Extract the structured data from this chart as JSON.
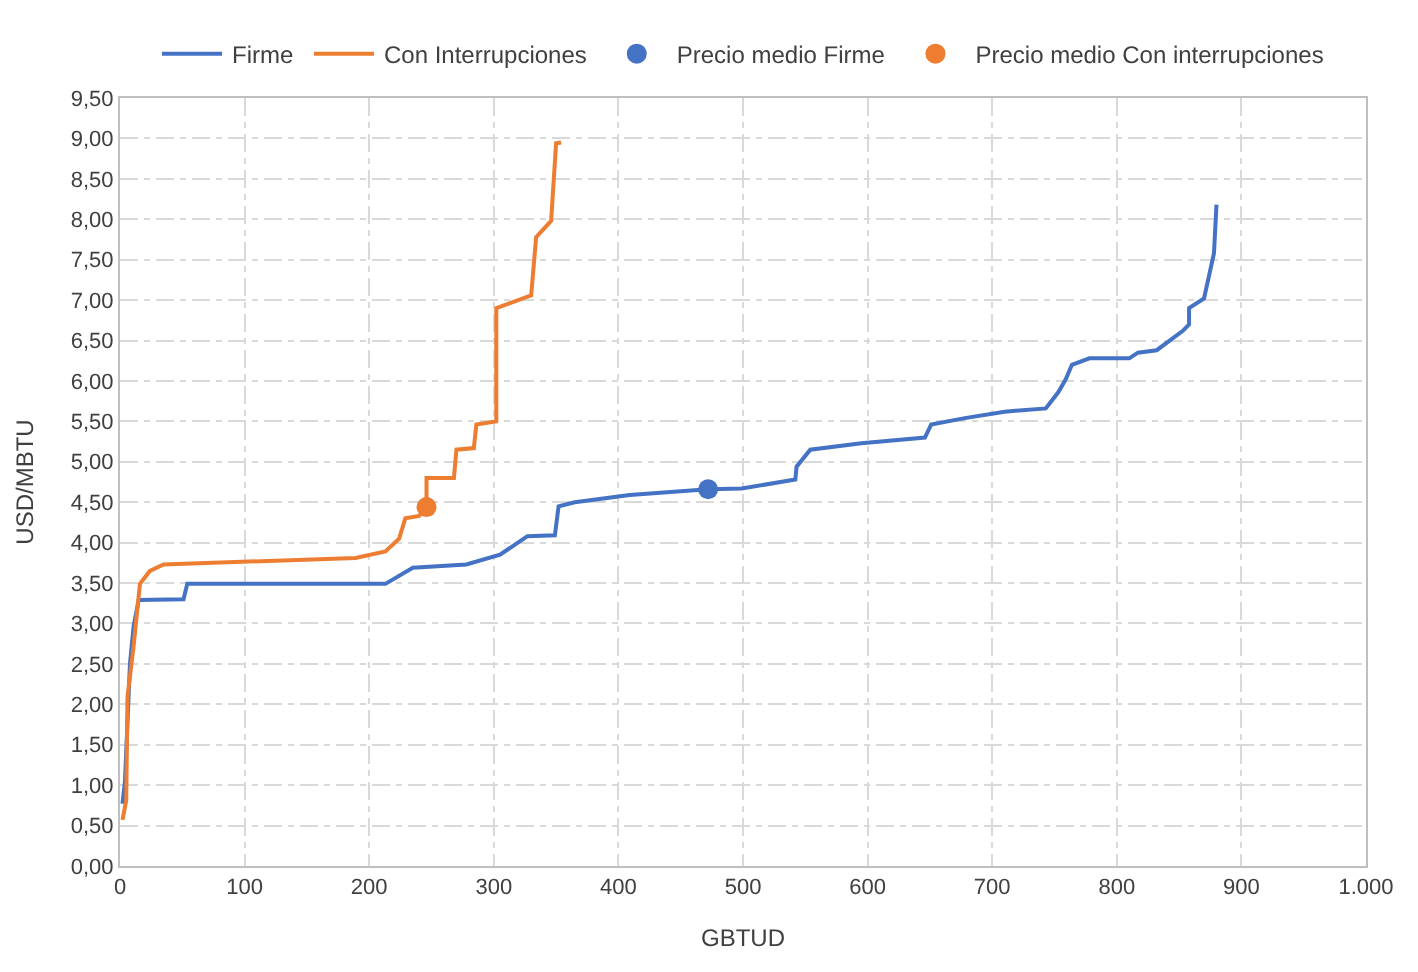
{
  "chart_data": {
    "type": "line",
    "xlabel": "GBTUD",
    "ylabel": "USD/MBTU",
    "series": [
      {
        "name": "Firme",
        "color": "#4472c4",
        "x": [
          2,
          4,
          8,
          11,
          15,
          51,
          54,
          207,
          213,
          235,
          278,
          305,
          327,
          349,
          352,
          365,
          409,
          472,
          499,
          542,
          543,
          554,
          595,
          646,
          651,
          678,
          710,
          743,
          753,
          759,
          764,
          778,
          810,
          817,
          832,
          853,
          858,
          858,
          870,
          878,
          880
        ],
        "values": [
          0.77,
          1.05,
          2.5,
          2.97,
          3.29,
          3.3,
          3.49,
          3.49,
          3.49,
          3.69,
          3.73,
          3.85,
          4.08,
          4.09,
          4.45,
          4.5,
          4.59,
          4.66,
          4.67,
          4.78,
          4.94,
          5.15,
          5.23,
          5.3,
          5.46,
          5.54,
          5.62,
          5.66,
          5.86,
          6.02,
          6.2,
          6.28,
          6.28,
          6.35,
          6.38,
          6.62,
          6.7,
          6.9,
          7.02,
          7.58,
          8.18
        ]
      },
      {
        "name": "Con Interrupciones",
        "color": "#ed7d31",
        "x": [
          2,
          5,
          6,
          11,
          16,
          24,
          35,
          189,
          213,
          224,
          229,
          240,
          246,
          246,
          268,
          270,
          284,
          286,
          302,
          302,
          330,
          334,
          346,
          350,
          354
        ],
        "values": [
          0.57,
          0.81,
          2.09,
          2.73,
          3.49,
          3.65,
          3.73,
          3.81,
          3.89,
          4.05,
          4.3,
          4.33,
          4.44,
          4.8,
          4.8,
          5.15,
          5.17,
          5.46,
          5.5,
          6.9,
          7.06,
          7.78,
          7.98,
          8.94,
          8.95
        ]
      },
      {
        "name": "Precio medio Firme",
        "type": "scatter",
        "color": "#4472c4",
        "x": [
          472
        ],
        "values": [
          4.66
        ]
      },
      {
        "name": "Precio medio Con interrupciones",
        "type": "scatter",
        "color": "#ed7d31",
        "x": [
          246
        ],
        "values": [
          4.44
        ]
      }
    ],
    "xlim": [
      0,
      1000
    ],
    "xticks": [
      0,
      100,
      200,
      300,
      400,
      500,
      600,
      700,
      800,
      900,
      {
        "value": 1000,
        "label": "1.000"
      }
    ],
    "ylim": [
      0,
      9.5
    ],
    "yticks": [
      {
        "value": 0,
        "label": "0,00"
      },
      {
        "value": 0.5,
        "label": "0,50"
      },
      {
        "value": 1,
        "label": "1,00"
      },
      {
        "value": 1.5,
        "label": "1,50"
      },
      {
        "value": 2,
        "label": "2,00"
      },
      {
        "value": 2.5,
        "label": "2,50"
      },
      {
        "value": 3,
        "label": "3,00"
      },
      {
        "value": 3.5,
        "label": "3,50"
      },
      {
        "value": 4,
        "label": "4,00"
      },
      {
        "value": 4.5,
        "label": "4,50"
      },
      {
        "value": 5,
        "label": "5,00"
      },
      {
        "value": 5.5,
        "label": "5,50"
      },
      {
        "value": 6,
        "label": "6,00"
      },
      {
        "value": 6.5,
        "label": "6,50"
      },
      {
        "value": 7,
        "label": "7,00"
      },
      {
        "value": 7.5,
        "label": "7,50"
      },
      {
        "value": 8,
        "label": "8,00"
      },
      {
        "value": 8.5,
        "label": "8,50"
      },
      {
        "value": 9,
        "label": "9,00"
      },
      {
        "value": 9.5,
        "label": "9,50"
      }
    ],
    "grid": true,
    "legend": "top"
  }
}
